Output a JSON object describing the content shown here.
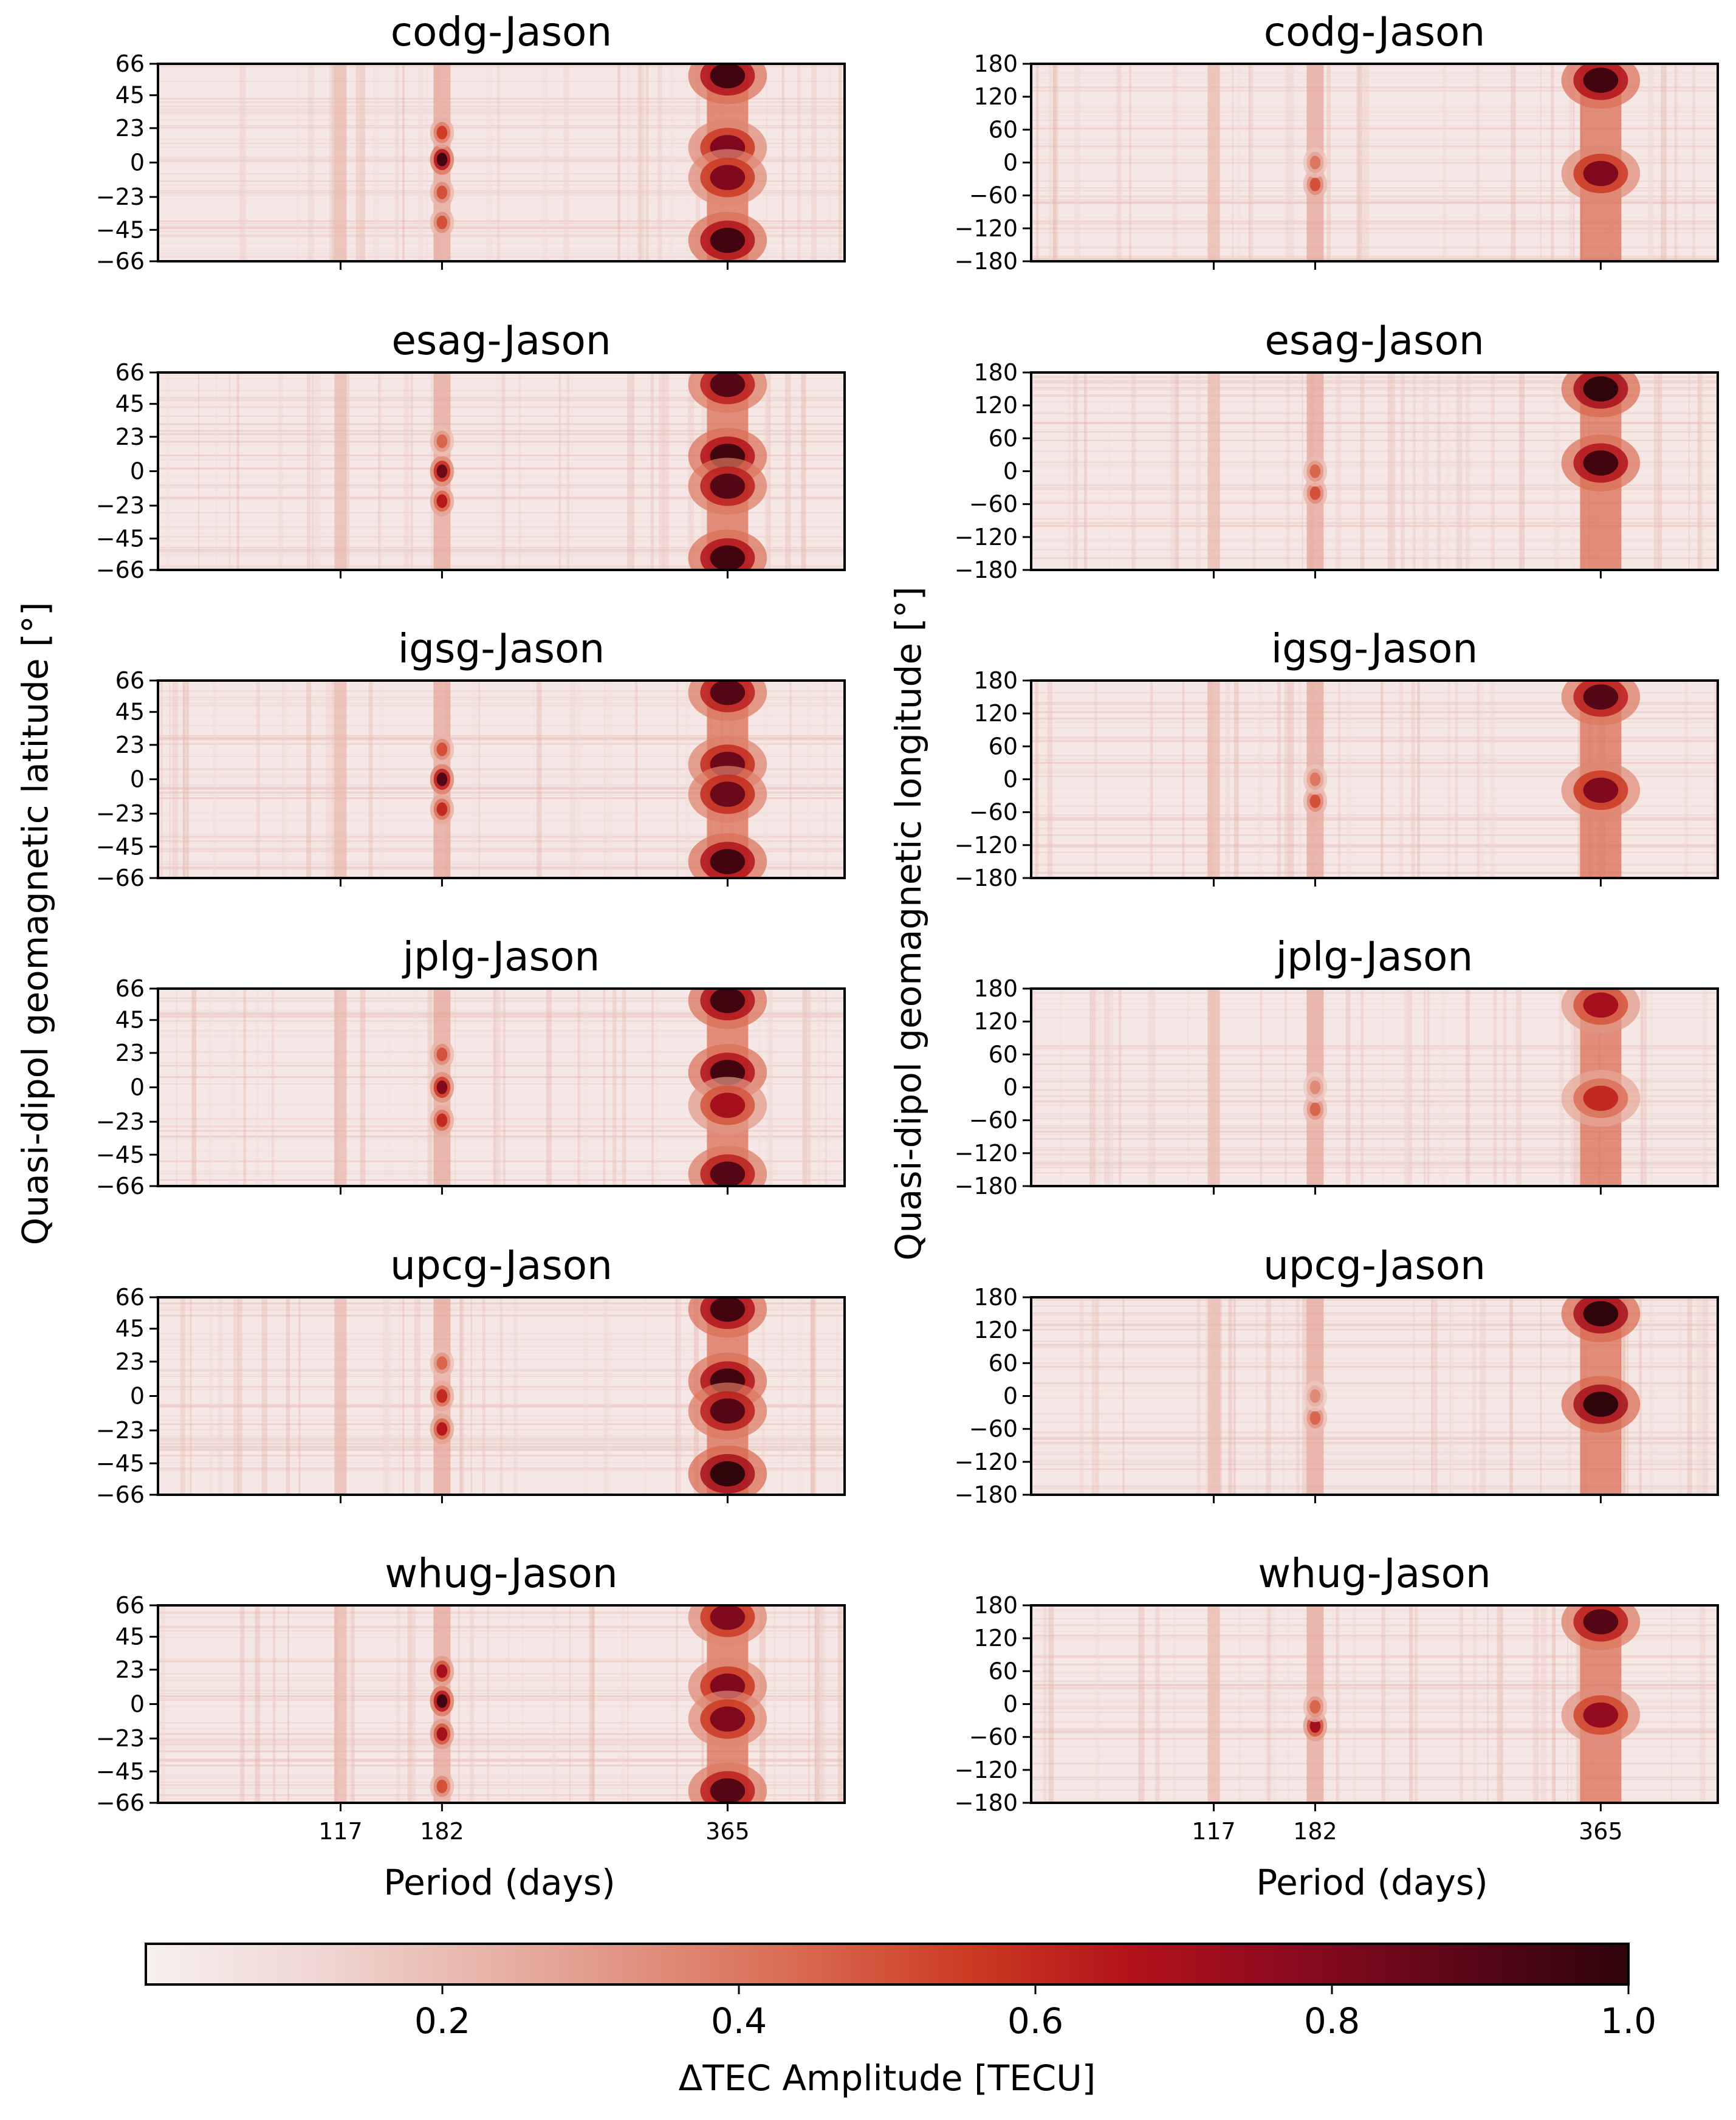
{
  "figure": {
    "left_ylabel": "Quasi-dipol geomagnetic latitude [°]",
    "right_ylabel": "Quasi-dipol geomagnetic longitude [°]",
    "xlabel": "Period (days)"
  },
  "colorbar": {
    "label": "ΔTEC Amplitude [TECU]",
    "range": [
      0.0,
      1.0
    ],
    "ticks": [
      {
        "value": 0.2,
        "label": "0.2"
      },
      {
        "value": 0.4,
        "label": "0.4"
      },
      {
        "value": 0.6,
        "label": "0.6"
      },
      {
        "value": 0.8,
        "label": "0.8"
      },
      {
        "value": 1.0,
        "label": "1.0"
      }
    ],
    "colors": [
      "#f7f0ef",
      "#f0d8d4",
      "#e8b6ac",
      "#e0917f",
      "#d9684f",
      "#cc3a22",
      "#b2121a",
      "#8a0a20",
      "#5a0716",
      "#2f040b"
    ]
  },
  "chart_data": {
    "type": "heatmap",
    "x_ticks": [
      {
        "value": 117,
        "label": "117"
      },
      {
        "value": 182,
        "label": "182"
      },
      {
        "value": 365,
        "label": "365"
      }
    ],
    "xlim": [
      0,
      440
    ],
    "lat_ticks": [
      {
        "value": 66,
        "label": "66"
      },
      {
        "value": 45,
        "label": "45"
      },
      {
        "value": 23,
        "label": "23"
      },
      {
        "value": 0,
        "label": "0"
      },
      {
        "value": -23,
        "label": "−23"
      },
      {
        "value": -45,
        "label": "−45"
      },
      {
        "value": -66,
        "label": "−66"
      }
    ],
    "lat_range": [
      -66,
      66
    ],
    "lon_ticks": [
      {
        "value": 180,
        "label": "180"
      },
      {
        "value": 120,
        "label": "120"
      },
      {
        "value": 60,
        "label": "60"
      },
      {
        "value": 0,
        "label": "0"
      },
      {
        "value": -60,
        "label": "−60"
      },
      {
        "value": -120,
        "label": "−120"
      },
      {
        "value": -180,
        "label": "−180"
      }
    ],
    "lon_range": [
      -180,
      180
    ],
    "panels": [
      {
        "id": "codg-lat",
        "title": "codg-Jason",
        "axis": "lat",
        "col": 0,
        "row": 0,
        "blobs": [
          {
            "x": 365,
            "y": 58,
            "amp": 0.95
          },
          {
            "x": 365,
            "y": 10,
            "amp": 0.8
          },
          {
            "x": 365,
            "y": -10,
            "amp": 0.8
          },
          {
            "x": 365,
            "y": -52,
            "amp": 0.95
          },
          {
            "x": 182,
            "y": 2,
            "amp": 0.95
          },
          {
            "x": 182,
            "y": 20,
            "amp": 0.55
          },
          {
            "x": 182,
            "y": -20,
            "amp": 0.5
          },
          {
            "x": 182,
            "y": -40,
            "amp": 0.5
          }
        ]
      },
      {
        "id": "codg-lon",
        "title": "codg-Jason",
        "axis": "lon",
        "col": 1,
        "row": 0,
        "blobs": [
          {
            "x": 365,
            "y": 150,
            "amp": 0.95
          },
          {
            "x": 365,
            "y": -20,
            "amp": 0.8
          },
          {
            "x": 182,
            "y": -40,
            "amp": 0.5
          },
          {
            "x": 182,
            "y": 0,
            "amp": 0.4
          }
        ]
      },
      {
        "id": "esag-lat",
        "title": "esag-Jason",
        "axis": "lat",
        "col": 0,
        "row": 1,
        "blobs": [
          {
            "x": 365,
            "y": 58,
            "amp": 0.9
          },
          {
            "x": 365,
            "y": 10,
            "amp": 0.95
          },
          {
            "x": 365,
            "y": -10,
            "amp": 0.9
          },
          {
            "x": 365,
            "y": -58,
            "amp": 0.95
          },
          {
            "x": 182,
            "y": 0,
            "amp": 0.85
          },
          {
            "x": 182,
            "y": -20,
            "amp": 0.65
          },
          {
            "x": 182,
            "y": 20,
            "amp": 0.45
          }
        ]
      },
      {
        "id": "esag-lon",
        "title": "esag-Jason",
        "axis": "lon",
        "col": 1,
        "row": 1,
        "blobs": [
          {
            "x": 365,
            "y": 150,
            "amp": 1.0
          },
          {
            "x": 365,
            "y": 15,
            "amp": 0.95
          },
          {
            "x": 182,
            "y": -40,
            "amp": 0.5
          },
          {
            "x": 182,
            "y": 0,
            "amp": 0.45
          }
        ]
      },
      {
        "id": "igsg-lat",
        "title": "igsg-Jason",
        "axis": "lat",
        "col": 0,
        "row": 2,
        "blobs": [
          {
            "x": 365,
            "y": 58,
            "amp": 0.9
          },
          {
            "x": 365,
            "y": 10,
            "amp": 0.85
          },
          {
            "x": 365,
            "y": -10,
            "amp": 0.85
          },
          {
            "x": 365,
            "y": -55,
            "amp": 0.95
          },
          {
            "x": 182,
            "y": 0,
            "amp": 0.9
          },
          {
            "x": 182,
            "y": -20,
            "amp": 0.6
          },
          {
            "x": 182,
            "y": 20,
            "amp": 0.5
          }
        ]
      },
      {
        "id": "igsg-lon",
        "title": "igsg-Jason",
        "axis": "lon",
        "col": 1,
        "row": 2,
        "blobs": [
          {
            "x": 365,
            "y": 150,
            "amp": 0.9
          },
          {
            "x": 365,
            "y": -20,
            "amp": 0.8
          },
          {
            "x": 182,
            "y": -40,
            "amp": 0.5
          },
          {
            "x": 182,
            "y": 0,
            "amp": 0.4
          }
        ]
      },
      {
        "id": "jplg-lat",
        "title": "jplg-Jason",
        "axis": "lat",
        "col": 0,
        "row": 3,
        "blobs": [
          {
            "x": 365,
            "y": 58,
            "amp": 0.95
          },
          {
            "x": 365,
            "y": 10,
            "amp": 0.95
          },
          {
            "x": 365,
            "y": -12,
            "amp": 0.7
          },
          {
            "x": 365,
            "y": -58,
            "amp": 0.9
          },
          {
            "x": 182,
            "y": 0,
            "amp": 0.8
          },
          {
            "x": 182,
            "y": -22,
            "amp": 0.6
          },
          {
            "x": 182,
            "y": 22,
            "amp": 0.5
          }
        ]
      },
      {
        "id": "jplg-lon",
        "title": "jplg-Jason",
        "axis": "lon",
        "col": 1,
        "row": 3,
        "blobs": [
          {
            "x": 365,
            "y": 150,
            "amp": 0.7
          },
          {
            "x": 365,
            "y": -20,
            "amp": 0.6
          },
          {
            "x": 182,
            "y": -40,
            "amp": 0.45
          },
          {
            "x": 182,
            "y": 0,
            "amp": 0.35
          }
        ]
      },
      {
        "id": "upcg-lat",
        "title": "upcg-Jason",
        "axis": "lat",
        "col": 0,
        "row": 4,
        "blobs": [
          {
            "x": 365,
            "y": 58,
            "amp": 0.95
          },
          {
            "x": 365,
            "y": 10,
            "amp": 0.95
          },
          {
            "x": 365,
            "y": -10,
            "amp": 0.9
          },
          {
            "x": 365,
            "y": -52,
            "amp": 1.0
          },
          {
            "x": 182,
            "y": 0,
            "amp": 0.6
          },
          {
            "x": 182,
            "y": -22,
            "amp": 0.65
          },
          {
            "x": 182,
            "y": 22,
            "amp": 0.45
          }
        ]
      },
      {
        "id": "upcg-lon",
        "title": "upcg-Jason",
        "axis": "lon",
        "col": 1,
        "row": 4,
        "blobs": [
          {
            "x": 365,
            "y": 150,
            "amp": 1.0
          },
          {
            "x": 365,
            "y": -15,
            "amp": 1.0
          },
          {
            "x": 182,
            "y": -40,
            "amp": 0.45
          },
          {
            "x": 182,
            "y": 0,
            "amp": 0.35
          }
        ]
      },
      {
        "id": "whug-lat",
        "title": "whug-Jason",
        "axis": "lat",
        "col": 0,
        "row": 5,
        "blobs": [
          {
            "x": 365,
            "y": 58,
            "amp": 0.8
          },
          {
            "x": 365,
            "y": 12,
            "amp": 0.8
          },
          {
            "x": 365,
            "y": -10,
            "amp": 0.8
          },
          {
            "x": 365,
            "y": -58,
            "amp": 0.9
          },
          {
            "x": 182,
            "y": 2,
            "amp": 0.95
          },
          {
            "x": 182,
            "y": 22,
            "amp": 0.7
          },
          {
            "x": 182,
            "y": -20,
            "amp": 0.7
          },
          {
            "x": 182,
            "y": -55,
            "amp": 0.5
          }
        ]
      },
      {
        "id": "whug-lon",
        "title": "whug-Jason",
        "axis": "lon",
        "col": 1,
        "row": 5,
        "blobs": [
          {
            "x": 365,
            "y": 150,
            "amp": 0.9
          },
          {
            "x": 365,
            "y": -20,
            "amp": 0.75
          },
          {
            "x": 182,
            "y": -40,
            "amp": 0.7
          },
          {
            "x": 182,
            "y": -5,
            "amp": 0.45
          }
        ]
      }
    ]
  }
}
